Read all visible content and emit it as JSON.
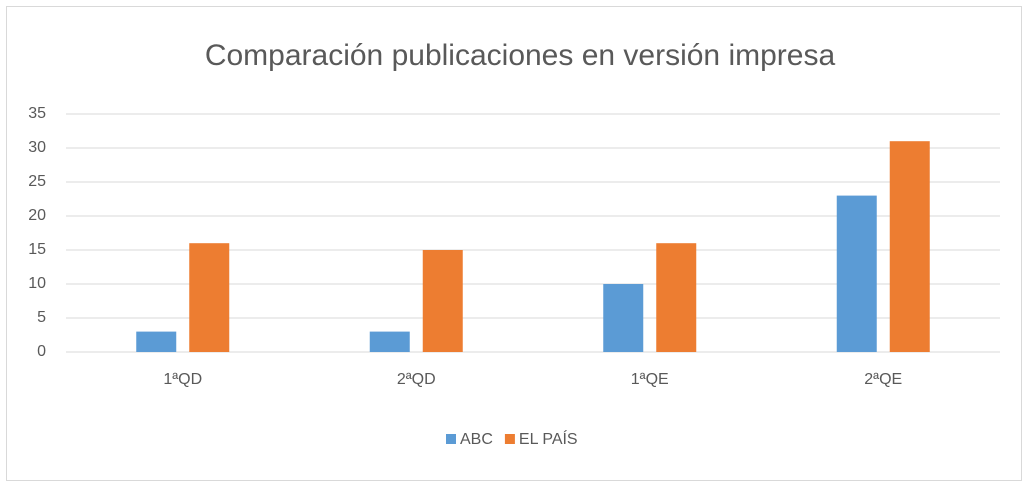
{
  "chart_data": {
    "type": "bar",
    "title": "Comparación publicaciones en versión impresa",
    "categories": [
      "1ªQD",
      "2ªQD",
      "1ªQE",
      "2ªQE"
    ],
    "series": [
      {
        "name": "ABC",
        "color": "#5b9bd5",
        "values": [
          3,
          3,
          10,
          23
        ]
      },
      {
        "name": "EL PAÍS",
        "color": "#ed7d31",
        "values": [
          16,
          15,
          16,
          31
        ]
      }
    ],
    "ylim": [
      0,
      35
    ],
    "yticks": [
      0,
      5,
      10,
      15,
      20,
      25,
      30,
      35
    ],
    "grid": true,
    "legend": "bottom"
  }
}
